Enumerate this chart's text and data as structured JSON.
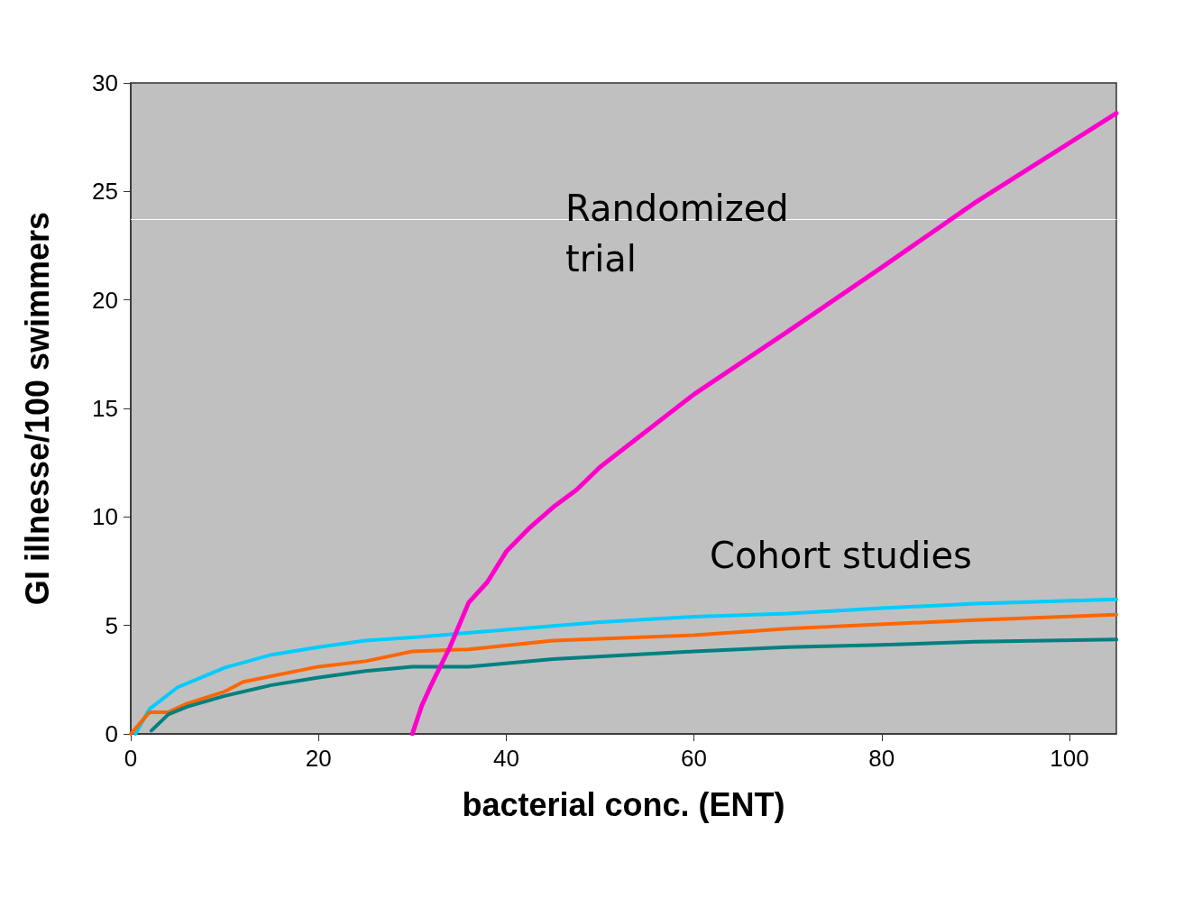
{
  "chart_data": {
    "type": "line",
    "xlabel": "bacterial conc. (ENT)",
    "ylabel": "GI illnesse/100 swimmers",
    "xlim": [
      0,
      105
    ],
    "xticks": [
      0,
      20,
      40,
      60,
      80,
      100
    ],
    "ylim": [
      0,
      30
    ],
    "yticks": [
      0,
      5,
      10,
      15,
      20,
      25,
      30
    ],
    "grid": false,
    "marker": "none",
    "line_style": "solid",
    "series": [
      {
        "color": "#00ccff",
        "x": [
          0.5,
          2,
          5,
          10,
          15,
          20,
          25,
          30,
          40,
          50,
          60,
          70,
          80,
          90,
          105
        ],
        "values": [
          0,
          1.15,
          2.15,
          3.05,
          3.65,
          4.0,
          4.3,
          4.45,
          4.8,
          5.15,
          5.4,
          5.55,
          5.8,
          6.0,
          6.2
        ]
      },
      {
        "color": "#ff6600",
        "x": [
          0,
          2,
          4,
          6,
          10,
          12,
          20,
          25,
          30,
          36,
          45,
          60,
          70,
          90,
          105
        ],
        "values": [
          0,
          1.0,
          1.0,
          1.4,
          1.95,
          2.4,
          3.1,
          3.35,
          3.8,
          3.9,
          4.3,
          4.55,
          4.85,
          5.25,
          5.5
        ]
      },
      {
        "color": "#008080",
        "x": [
          2.2,
          4,
          6,
          10,
          15,
          20,
          25,
          30,
          36,
          45,
          60,
          70,
          80,
          90,
          105
        ],
        "values": [
          0.15,
          0.9,
          1.25,
          1.75,
          2.25,
          2.6,
          2.9,
          3.1,
          3.1,
          3.45,
          3.8,
          4.0,
          4.1,
          4.25,
          4.35
        ]
      },
      {
        "color": "#ff00cc",
        "x": [
          30,
          31,
          32,
          34,
          36,
          38,
          40,
          42.5,
          45,
          47.5,
          50,
          60,
          70,
          80,
          90,
          105
        ],
        "values": [
          0,
          1.3,
          2.25,
          4.0,
          6.05,
          7.0,
          8.4,
          9.5,
          10.45,
          11.25,
          12.3,
          15.65,
          18.55,
          21.5,
          24.5,
          28.6
        ]
      }
    ],
    "ref_lines": [
      {
        "axis": "y",
        "value": 23.7,
        "label": null,
        "color": "#ffffff"
      }
    ],
    "annotations": [
      "Randomized trial",
      "Cohort studies"
    ]
  }
}
